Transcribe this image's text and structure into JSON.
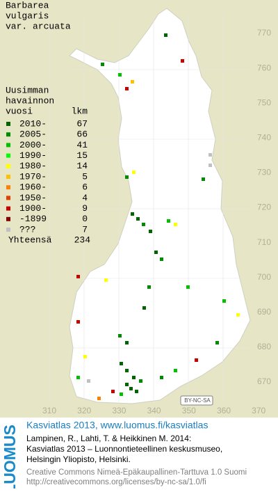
{
  "title": [
    "Barbarea",
    "vulgaris",
    "var. arcuata"
  ],
  "legend": {
    "header": [
      "Uusimman",
      "havainnon",
      "vuosi"
    ],
    "count_header": "lkm",
    "rows": [
      {
        "label": "2010-",
        "count": 67,
        "color": "#006400"
      },
      {
        "label": "2005-",
        "count": 66,
        "color": "#008c00"
      },
      {
        "label": "2000-",
        "count": 41,
        "color": "#00c000"
      },
      {
        "label": "1990-",
        "count": 15,
        "color": "#00ff00"
      },
      {
        "label": "1980-",
        "count": 14,
        "color": "#ffff00"
      },
      {
        "label": "1970-",
        "count": 5,
        "color": "#ffc000"
      },
      {
        "label": "1960-",
        "count": 6,
        "color": "#ff8000"
      },
      {
        "label": "1950-",
        "count": 4,
        "color": "#e04000"
      },
      {
        "label": "1900-",
        "count": 9,
        "color": "#c80000"
      },
      {
        "label": "-1899",
        "count": 0,
        "color": "#800000"
      },
      {
        "label": "???",
        "count": 7,
        "color": "#c0c0c0"
      }
    ],
    "total_label": "Yhteensä",
    "total": 234
  },
  "y_labels": [
    "770",
    "760",
    "750",
    "740",
    "730",
    "720",
    "710",
    "700",
    "690",
    "680",
    "670"
  ],
  "x_labels": [
    "310",
    "320",
    "330",
    "340",
    "350",
    "360",
    "370"
  ],
  "license_badge": "BY-NC-SA",
  "footer": {
    "logo": "LUOMUS",
    "link": "Kasviatlas 2013, www.luomus.fi/kasviatlas",
    "citation": [
      "Lampinen, R., Lahti, T. & Heikkinen M. 2014:",
      "Kasviatlas 2013 – Luonnontieteellinen keskusmuseo,",
      "Helsingin Yliopisto, Helsinki."
    ],
    "license": [
      "Creative Commons Nimeä-Epäkaupallinen-Tarttuva 1.0 Suomi",
      "http://creativecommons.org/licenses/by-nc-sa/1.0/fi"
    ]
  }
}
